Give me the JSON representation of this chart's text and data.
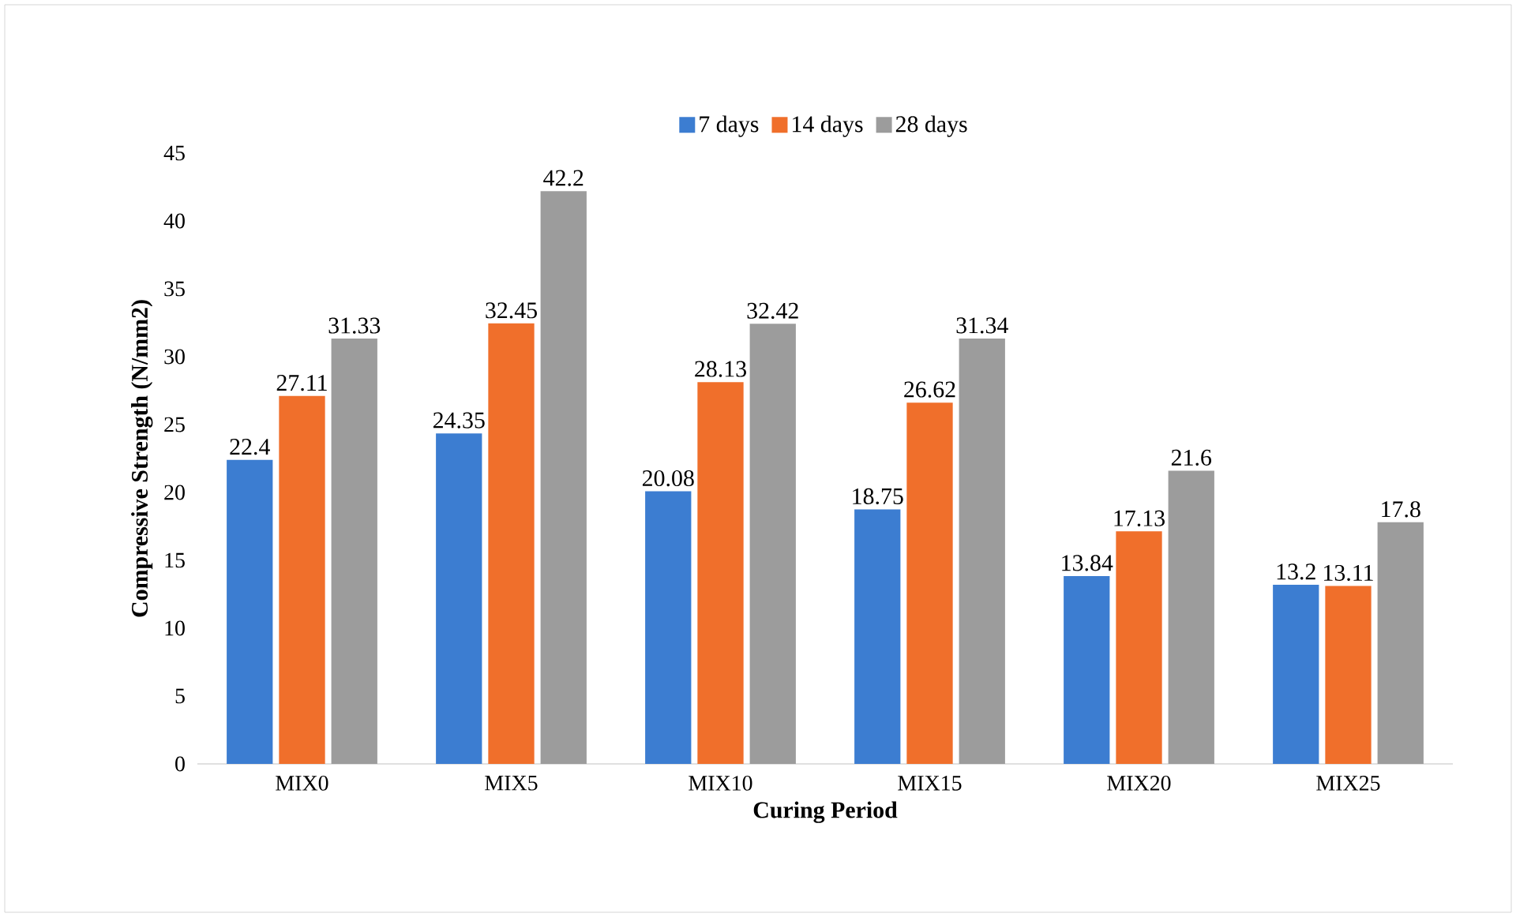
{
  "chart_data": {
    "type": "bar",
    "xlabel": "Curing Period",
    "ylabel": "Compressive Strength (N/mm2)",
    "categories": [
      "MIX0",
      "MIX5",
      "MIX10",
      "MIX15",
      "MIX20",
      "MIX25"
    ],
    "series": [
      {
        "name": "7 days",
        "color": "#3c7dd1",
        "values": [
          22.4,
          24.35,
          20.08,
          18.75,
          13.84,
          13.2
        ]
      },
      {
        "name": "14 days",
        "color": "#f06f2b",
        "values": [
          27.11,
          32.45,
          28.13,
          26.62,
          17.13,
          13.11
        ]
      },
      {
        "name": "28 days",
        "color": "#9c9c9c",
        "values": [
          31.33,
          42.2,
          32.42,
          31.34,
          21.6,
          17.8
        ]
      }
    ],
    "ylim": [
      0,
      45
    ],
    "yticks": [
      0,
      5,
      10,
      15,
      20,
      25,
      30,
      35,
      40,
      45
    ],
    "legend": "top",
    "data_labels": true
  }
}
